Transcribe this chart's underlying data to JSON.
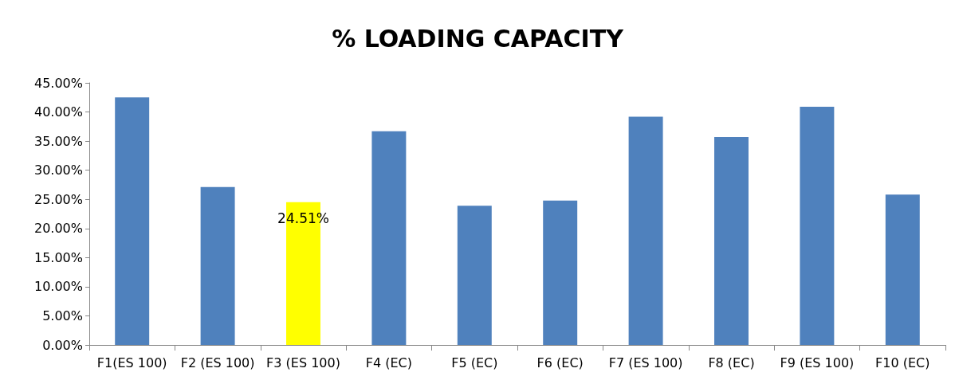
{
  "chart_data": {
    "type": "bar",
    "title": "% LOADING CAPACITY",
    "categories": [
      "F1(ES 100)",
      "F2 (ES 100)",
      "F3 (ES 100)",
      "F4 (EC)",
      "F5 (EC)",
      "F6 (EC)",
      "F7 (ES 100)",
      "F8 (EC)",
      "F9 (ES 100)",
      "F10 (EC)"
    ],
    "values": [
      42.5,
      27.1,
      24.51,
      36.7,
      23.9,
      24.8,
      39.2,
      35.7,
      40.9,
      25.8
    ],
    "colors": [
      "#4f81bd",
      "#4f81bd",
      "#ffff00",
      "#4f81bd",
      "#4f81bd",
      "#4f81bd",
      "#4f81bd",
      "#4f81bd",
      "#4f81bd",
      "#4f81bd"
    ],
    "value_labels": [
      null,
      null,
      "24.51%",
      null,
      null,
      null,
      null,
      null,
      null,
      null
    ],
    "ylim": [
      0,
      45
    ],
    "yticks": [
      {
        "value": 0,
        "label": "0.00%"
      },
      {
        "value": 5,
        "label": "5.00%"
      },
      {
        "value": 10,
        "label": "10.00%"
      },
      {
        "value": 15,
        "label": "15.00%"
      },
      {
        "value": 20,
        "label": "20.00%"
      },
      {
        "value": 25,
        "label": "25.00%"
      },
      {
        "value": 30,
        "label": "30.00%"
      },
      {
        "value": 35,
        "label": "35.00%"
      },
      {
        "value": 40,
        "label": "40.00%"
      },
      {
        "value": 45,
        "label": "45.00%"
      }
    ],
    "grid": false
  }
}
